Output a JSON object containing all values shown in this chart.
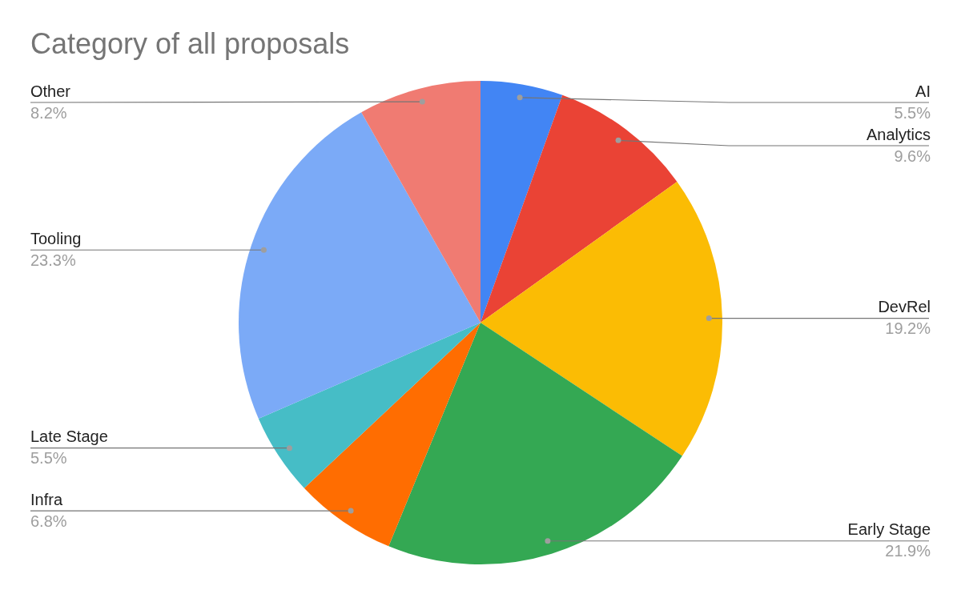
{
  "chart_data": {
    "type": "pie",
    "title": "Category of all proposals",
    "categories": [
      "AI",
      "Analytics",
      "DevRel",
      "Early Stage",
      "Infra",
      "Late Stage",
      "Tooling",
      "Other"
    ],
    "values": [
      5.5,
      9.6,
      19.2,
      21.9,
      6.8,
      5.5,
      23.3,
      8.2
    ],
    "value_labels": [
      "5.5%",
      "9.6%",
      "19.2%",
      "21.9%",
      "6.8%",
      "5.5%",
      "23.3%",
      "8.2%"
    ],
    "colors": [
      "#4285f4",
      "#ea4335",
      "#fbbc04",
      "#34a853",
      "#ff6d01",
      "#46bdc6",
      "#7baaf7",
      "#f07b72"
    ],
    "legend": false
  }
}
